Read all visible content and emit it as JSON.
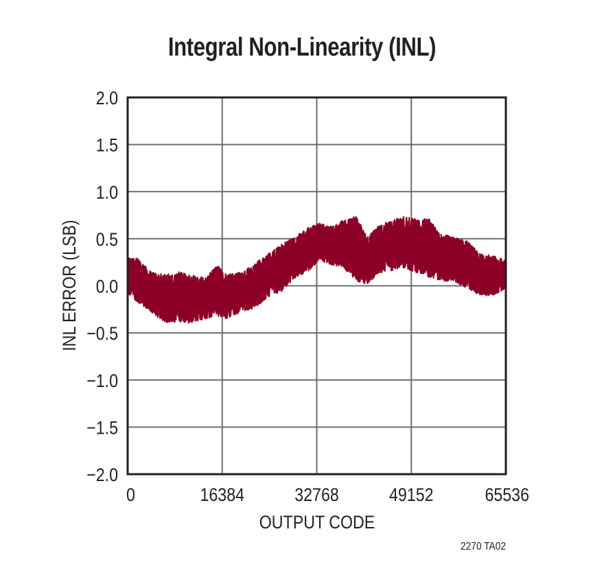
{
  "chart_data": {
    "type": "line",
    "title": "Integral Non-Linearity (INL)",
    "xlabel": "OUTPUT CODE",
    "ylabel": "INL ERROR (LSB)",
    "xlim": [
      0,
      65536
    ],
    "ylim": [
      -2.0,
      2.0
    ],
    "x_ticks": [
      "0",
      "16384",
      "32768",
      "49152",
      "65536"
    ],
    "y_ticks": [
      "2.0",
      "1.5",
      "1.0",
      "0.5",
      "0.0",
      "−0.5",
      "−1.0",
      "−1.5",
      "−2.0"
    ],
    "grid": true,
    "legend": null,
    "series": [
      {
        "name": "INL",
        "color": "#8c0027",
        "note": "Dense noisy trace shown as upper/lower envelope band",
        "x": [
          0,
          1666,
          4045,
          6424,
          8803,
          11182,
          13561,
          15346,
          17130,
          19509,
          21888,
          24267,
          26646,
          29025,
          31404,
          33188,
          34973,
          37352,
          39731,
          41515,
          43300,
          45679,
          48058,
          50437,
          52221,
          54006,
          56385,
          58764,
          61143,
          63522,
          65536
        ],
        "upper": [
          0.3,
          0.3,
          0.15,
          0.12,
          0.15,
          0.12,
          0.08,
          0.23,
          0.12,
          0.15,
          0.23,
          0.34,
          0.45,
          0.52,
          0.63,
          0.67,
          0.63,
          0.7,
          0.74,
          0.52,
          0.63,
          0.7,
          0.74,
          0.7,
          0.72,
          0.56,
          0.52,
          0.48,
          0.34,
          0.32,
          0.27
        ],
        "lower": [
          -0.1,
          -0.17,
          -0.28,
          -0.39,
          -0.39,
          -0.4,
          -0.35,
          -0.32,
          -0.35,
          -0.28,
          -0.24,
          -0.13,
          -0.06,
          0.08,
          0.16,
          0.27,
          0.23,
          0.19,
          0.05,
          0.01,
          0.12,
          0.16,
          0.19,
          0.12,
          0.08,
          0.05,
          0.05,
          -0.03,
          -0.11,
          -0.1,
          -0.03
        ]
      }
    ],
    "footnote": "2270 TA02"
  }
}
